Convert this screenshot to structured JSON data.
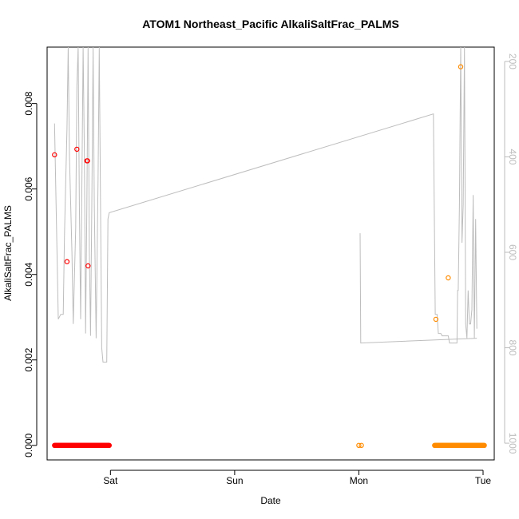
{
  "chart_data": {
    "type": "scatter",
    "title": "ATOM1 Northeast_Pacific AlkaliSaltFrac_PALMS",
    "xlabel": "Date",
    "ylabel": "AlkaliSaltFrac_PALMS",
    "x_ticks": [
      {
        "label": "Sat",
        "day": 1.0
      },
      {
        "label": "Sun",
        "day": 2.0
      },
      {
        "label": "Mon",
        "day": 3.0
      },
      {
        "label": "Tue",
        "day": 4.0
      }
    ],
    "y_ticks": [
      0.0,
      0.002,
      0.004,
      0.006,
      0.008
    ],
    "ylim": [
      -0.00034,
      0.00932
    ],
    "xlim": [
      0.49,
      4.09
    ],
    "right_axis": {
      "ticks": [
        200,
        400,
        600,
        800,
        1000
      ],
      "ylim": [
        1035,
        170
      ],
      "color": "#bdbdbd"
    },
    "series": [
      {
        "color": "#ff0000",
        "points": [
          [
            0.55,
            0.0068
          ],
          [
            0.65,
            0.0043
          ],
          [
            0.73,
            0.00693
          ],
          [
            0.81,
            0.00666
          ],
          [
            0.815,
            0.00666
          ],
          [
            0.82,
            0.0042
          ]
        ],
        "baseline": {
          "from": 0.55,
          "to": 0.99,
          "value": 0.0
        }
      },
      {
        "color": "#ff8c00",
        "points": [
          [
            3.0,
            0.0
          ],
          [
            3.02,
            0.0
          ],
          [
            3.62,
            0.00295
          ],
          [
            3.72,
            0.00392
          ],
          [
            3.82,
            0.00886
          ]
        ],
        "baseline": {
          "from": 3.61,
          "to": 4.01,
          "value": 0.0
        }
      }
    ],
    "line_series": {
      "color": "#bdbdbd",
      "axis": "right",
      "points": [
        [
          0.55,
          330
        ],
        [
          0.56,
          470
        ],
        [
          0.57,
          600
        ],
        [
          0.58,
          740
        ],
        [
          0.6,
          730
        ],
        [
          0.62,
          730
        ],
        [
          0.63,
          560
        ],
        [
          0.65,
          340
        ],
        [
          0.66,
          140
        ],
        [
          0.67,
          400
        ],
        [
          0.69,
          600
        ],
        [
          0.7,
          750
        ],
        [
          0.72,
          550
        ],
        [
          0.73,
          250
        ],
        [
          0.74,
          140
        ],
        [
          0.75,
          500
        ],
        [
          0.76,
          740
        ],
        [
          0.77,
          450
        ],
        [
          0.78,
          140
        ],
        [
          0.79,
          400
        ],
        [
          0.8,
          770
        ],
        [
          0.81,
          500
        ],
        [
          0.82,
          140
        ],
        [
          0.83,
          600
        ],
        [
          0.84,
          775
        ],
        [
          0.85,
          500
        ],
        [
          0.86,
          140
        ],
        [
          0.87,
          500
        ],
        [
          0.885,
          780
        ],
        [
          0.9,
          450
        ],
        [
          0.91,
          140
        ],
        [
          0.92,
          500
        ],
        [
          0.93,
          800
        ],
        [
          0.94,
          830
        ],
        [
          0.97,
          830
        ],
        [
          0.98,
          530
        ],
        [
          0.99,
          517
        ],
        [
          3.6,
          310
        ],
        [
          3.615,
          730
        ],
        [
          3.63,
          730
        ],
        [
          3.64,
          770
        ],
        [
          3.65,
          770
        ],
        [
          3.66,
          770
        ],
        [
          3.67,
          775
        ],
        [
          3.72,
          775
        ],
        [
          3.73,
          790
        ],
        [
          3.79,
          790
        ],
        [
          3.795,
          680
        ],
        [
          3.8,
          680
        ],
        [
          3.81,
          500
        ],
        [
          3.82,
          140
        ],
        [
          3.83,
          580
        ],
        [
          3.84,
          500
        ],
        [
          3.85,
          140
        ],
        [
          3.86,
          750
        ],
        [
          3.87,
          780
        ],
        [
          3.88,
          680
        ],
        [
          3.89,
          750
        ],
        [
          3.9,
          750
        ],
        [
          3.91,
          720
        ],
        [
          3.92,
          480
        ],
        [
          3.93,
          780
        ],
        [
          3.94,
          530
        ],
        [
          3.95,
          760
        ]
      ],
      "extra_segments": [
        [
          [
            3.01,
            560
          ],
          [
            3.015,
            790
          ],
          [
            3.95,
            780
          ]
        ]
      ]
    }
  }
}
